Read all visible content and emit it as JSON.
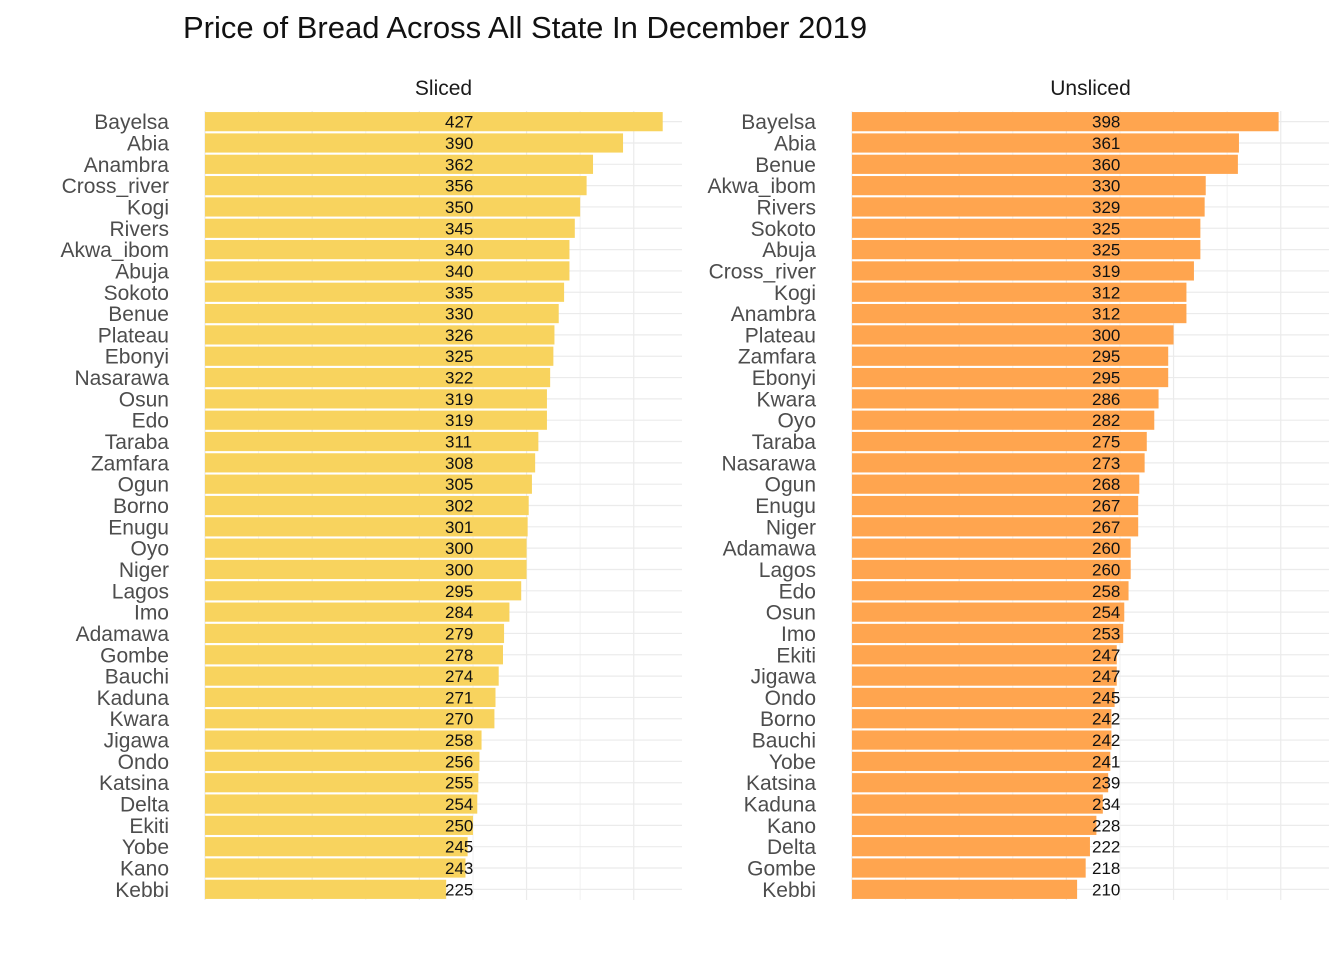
{
  "chart_data": {
    "type": "bar",
    "orientation": "horizontal",
    "title": "Price of Bread Across All State In December 2019",
    "xlim": [
      0,
      445
    ],
    "grid": true,
    "legend": "none",
    "panels": [
      {
        "name": "Sliced",
        "color": "#F8D35E",
        "categories": [
          "Bayelsa",
          "Abia",
          "Anambra",
          "Cross_river",
          "Kogi",
          "Rivers",
          "Akwa_ibom",
          "Abuja",
          "Sokoto",
          "Benue",
          "Plateau",
          "Ebonyi",
          "Nasarawa",
          "Osun",
          "Edo",
          "Taraba",
          "Zamfara",
          "Ogun",
          "Borno",
          "Enugu",
          "Oyo",
          "Niger",
          "Lagos",
          "Imo",
          "Adamawa",
          "Gombe",
          "Bauchi",
          "Kaduna",
          "Kwara",
          "Jigawa",
          "Ondo",
          "Katsina",
          "Delta",
          "Ekiti",
          "Yobe",
          "Kano",
          "Kebbi"
        ],
        "values": [
          427,
          390,
          362,
          356,
          350,
          345,
          340,
          340,
          335,
          330,
          326,
          325,
          322,
          319,
          319,
          311,
          308,
          305,
          302,
          301,
          300,
          300,
          295,
          284,
          279,
          278,
          274,
          271,
          270,
          258,
          256,
          255,
          254,
          250,
          245,
          243,
          225
        ]
      },
      {
        "name": "Unsliced",
        "color": "#FFA54F",
        "categories": [
          "Bayelsa",
          "Abia",
          "Benue",
          "Akwa_ibom",
          "Rivers",
          "Sokoto",
          "Abuja",
          "Cross_river",
          "Kogi",
          "Anambra",
          "Plateau",
          "Zamfara",
          "Ebonyi",
          "Kwara",
          "Oyo",
          "Taraba",
          "Nasarawa",
          "Ogun",
          "Enugu",
          "Niger",
          "Adamawa",
          "Lagos",
          "Edo",
          "Osun",
          "Imo",
          "Ekiti",
          "Jigawa",
          "Ondo",
          "Borno",
          "Bauchi",
          "Yobe",
          "Katsina",
          "Kaduna",
          "Kano",
          "Delta",
          "Gombe",
          "Kebbi"
        ],
        "values": [
          398,
          361,
          360,
          330,
          329,
          325,
          325,
          319,
          312,
          312,
          300,
          295,
          295,
          286,
          282,
          275,
          273,
          268,
          267,
          267,
          260,
          260,
          258,
          254,
          253,
          247,
          247,
          245,
          242,
          242,
          241,
          239,
          234,
          228,
          222,
          218,
          210
        ]
      }
    ]
  }
}
